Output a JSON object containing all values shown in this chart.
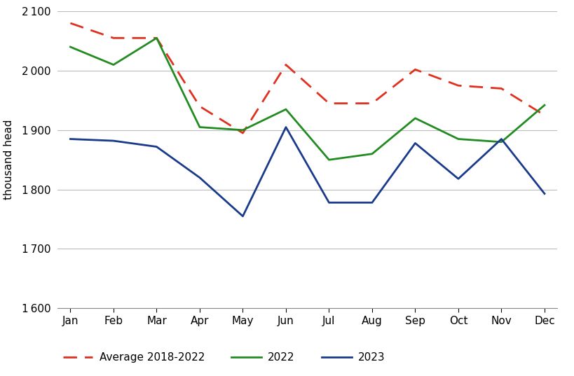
{
  "months": [
    "Jan",
    "Feb",
    "Mar",
    "Apr",
    "May",
    "Jun",
    "Jul",
    "Aug",
    "Sep",
    "Oct",
    "Nov",
    "Dec"
  ],
  "avg_2018_2022": [
    2080,
    2055,
    2055,
    1940,
    1895,
    2010,
    1945,
    1945,
    2002,
    1975,
    1970,
    1925
  ],
  "y2022": [
    2040,
    2010,
    2055,
    1905,
    1900,
    1935,
    1850,
    1860,
    1920,
    1885,
    1880,
    1942
  ],
  "y2023": [
    1885,
    1882,
    1872,
    1820,
    1755,
    1905,
    1778,
    1778,
    1878,
    1818,
    1885,
    1793
  ],
  "avg_color": "#e03020",
  "y2022_color": "#228B22",
  "y2023_color": "#1a3a8c",
  "ylabel": "thousand head",
  "ylim": [
    1600,
    2100
  ],
  "yticks": [
    1600,
    1700,
    1800,
    1900,
    2000,
    2100
  ],
  "legend_labels": [
    "Average 2018-2022",
    "2022",
    "2023"
  ],
  "bg_color": "#ffffff",
  "grid_color": "#bbbbbb"
}
